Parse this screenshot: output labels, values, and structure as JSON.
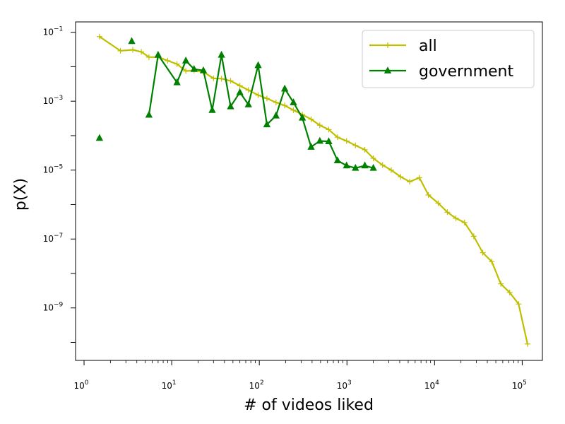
{
  "chart_data": {
    "type": "line",
    "title": "",
    "xlabel": "# of videos liked",
    "ylabel": "p(X)",
    "xscale": "log",
    "yscale": "log",
    "xlim": [
      0.8,
      170000
    ],
    "ylim": [
      3e-11,
      0.2
    ],
    "x_ticks": [
      {
        "base": "10",
        "exp": "0",
        "value": 1
      },
      {
        "base": "10",
        "exp": "1",
        "value": 10
      },
      {
        "base": "10",
        "exp": "2",
        "value": 100
      },
      {
        "base": "10",
        "exp": "3",
        "value": 1000
      },
      {
        "base": "10",
        "exp": "4",
        "value": 10000
      },
      {
        "base": "10",
        "exp": "5",
        "value": 100000
      }
    ],
    "y_ticks": [
      {
        "base": "10",
        "exp": "−1",
        "value": 0.1
      },
      {
        "base": "10",
        "exp": "−3",
        "value": 0.001
      },
      {
        "base": "10",
        "exp": "−5",
        "value": 1e-05
      },
      {
        "base": "10",
        "exp": "−7",
        "value": 1e-07
      },
      {
        "base": "10",
        "exp": "−9",
        "value": 1e-09
      }
    ],
    "legend_position": "top-right",
    "grid": false,
    "series": [
      {
        "name": "all",
        "color": "#bfbf00",
        "marker": "plus",
        "connected": true,
        "x": [
          1.5,
          2.6,
          3.6,
          4.5,
          5.5,
          7,
          9,
          11.5,
          14.5,
          18,
          23,
          30,
          37,
          47,
          60,
          75,
          97,
          122,
          155,
          195,
          245,
          310,
          390,
          490,
          620,
          780,
          990,
          1250,
          1600,
          2000,
          2550,
          3200,
          4100,
          5200,
          6700,
          8500,
          11000,
          14000,
          17500,
          22000,
          28000,
          35500,
          45000,
          57000,
          72000,
          91000,
          115000
        ],
        "y": [
          0.075,
          0.029,
          0.031,
          0.027,
          0.019,
          0.019,
          0.015,
          0.012,
          0.0075,
          0.0078,
          0.0071,
          0.0046,
          0.0045,
          0.0039,
          0.0028,
          0.0021,
          0.0015,
          0.0012,
          0.00092,
          0.00075,
          0.00055,
          0.00041,
          0.0003,
          0.0002,
          0.00015,
          9e-05,
          7e-05,
          5.2e-05,
          3.9e-05,
          2.2e-05,
          1.4e-05,
          1e-05,
          6.4e-06,
          4.6e-06,
          6e-06,
          1.9e-06,
          1.1e-06,
          6e-07,
          4e-07,
          3e-07,
          1.2e-07,
          4e-08,
          2.2e-08,
          5e-09,
          2.8e-09,
          1.3e-09,
          9e-11
        ]
      },
      {
        "name": "government",
        "color": "#008000",
        "marker": "triangle",
        "connected": false,
        "x": [
          1.5
        ],
        "y": [
          8.5e-05
        ]
      },
      {
        "name": "government",
        "color": "#008000",
        "marker": "triangle",
        "connected": false,
        "x": [
          3.5
        ],
        "y": [
          0.055
        ]
      },
      {
        "name": "government",
        "color": "#008000",
        "marker": "triangle",
        "connected": true,
        "x": [
          5.5,
          7,
          11.5,
          14.5,
          18,
          23,
          29,
          37,
          47,
          60,
          75,
          97,
          122,
          155,
          195,
          245,
          310,
          390,
          490,
          620,
          780,
          990,
          1250,
          1600,
          2000
        ],
        "y": [
          0.0004,
          0.022,
          0.0035,
          0.015,
          0.0085,
          0.0078,
          0.00055,
          0.022,
          0.0007,
          0.0018,
          0.0008,
          0.011,
          0.00021,
          0.00038,
          0.0023,
          0.00092,
          0.00033,
          4.7e-05,
          7e-05,
          6.8e-05,
          1.9e-05,
          1.35e-05,
          1.15e-05,
          1.35e-05,
          1.15e-05
        ]
      }
    ],
    "legend": [
      {
        "label": "all",
        "color": "#bfbf00",
        "marker": "plus"
      },
      {
        "label": "government",
        "color": "#008000",
        "marker": "triangle"
      }
    ]
  }
}
